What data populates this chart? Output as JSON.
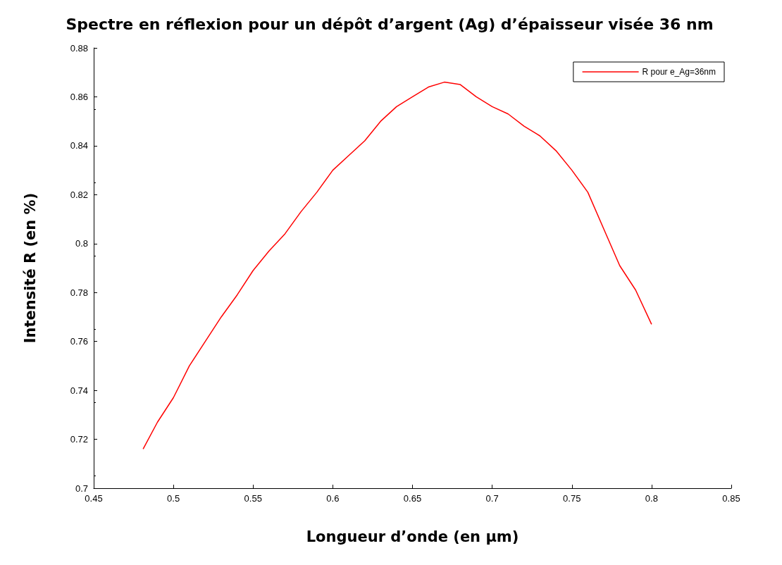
{
  "chart_data": {
    "type": "line",
    "title": "Spectre en réflexion pour un dépôt d’argent (Ag) d’épaisseur visée 36 nm",
    "xlabel": "Longueur d’onde (en µm)",
    "ylabel": "Intensité R (en %)",
    "xlim": [
      0.45,
      0.85
    ],
    "xticks": [
      0.45,
      0.5,
      0.55,
      0.6,
      0.65,
      0.7,
      0.75,
      0.8,
      0.85
    ],
    "ylim": [
      0.7,
      0.88
    ],
    "yticks": [
      0.7,
      0.72,
      0.74,
      0.76,
      0.78,
      0.8,
      0.82,
      0.84,
      0.86,
      0.88
    ],
    "grid": false,
    "legend": "top right",
    "marker": "none",
    "line_style": "solid",
    "series": [
      {
        "name": "R pour e_Ag=36nm",
        "color": "#ff0000",
        "x": [
          0.481,
          0.49,
          0.5,
          0.51,
          0.52,
          0.53,
          0.54,
          0.55,
          0.56,
          0.57,
          0.58,
          0.59,
          0.6,
          0.61,
          0.62,
          0.63,
          0.64,
          0.65,
          0.66,
          0.67,
          0.68,
          0.69,
          0.7,
          0.71,
          0.72,
          0.73,
          0.74,
          0.75,
          0.76,
          0.77,
          0.78,
          0.79,
          0.8
        ],
        "values": [
          0.716,
          0.727,
          0.737,
          0.75,
          0.76,
          0.77,
          0.779,
          0.789,
          0.797,
          0.804,
          0.813,
          0.821,
          0.83,
          0.836,
          0.842,
          0.85,
          0.856,
          0.86,
          0.864,
          0.866,
          0.865,
          0.86,
          0.856,
          0.853,
          0.848,
          0.844,
          0.838,
          0.83,
          0.821,
          0.806,
          0.791,
          0.781,
          0.767
        ]
      }
    ]
  }
}
